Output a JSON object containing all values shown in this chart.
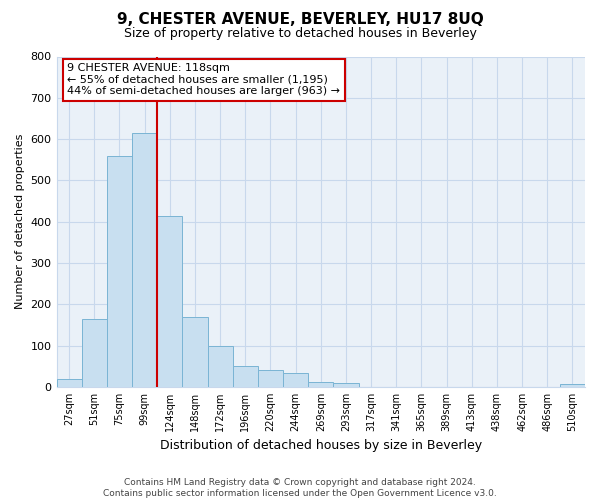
{
  "title": "9, CHESTER AVENUE, BEVERLEY, HU17 8UQ",
  "subtitle": "Size of property relative to detached houses in Beverley",
  "xlabel": "Distribution of detached houses by size in Beverley",
  "ylabel": "Number of detached properties",
  "bar_labels": [
    "27sqm",
    "51sqm",
    "75sqm",
    "99sqm",
    "124sqm",
    "148sqm",
    "172sqm",
    "196sqm",
    "220sqm",
    "244sqm",
    "269sqm",
    "293sqm",
    "317sqm",
    "341sqm",
    "365sqm",
    "389sqm",
    "413sqm",
    "438sqm",
    "462sqm",
    "486sqm",
    "510sqm"
  ],
  "bar_heights": [
    20,
    165,
    560,
    615,
    415,
    170,
    100,
    50,
    40,
    33,
    13,
    10,
    0,
    0,
    0,
    0,
    0,
    0,
    0,
    0,
    8
  ],
  "bar_color": "#c8dff0",
  "bar_edge_color": "#7ab4d4",
  "vline_color": "#cc0000",
  "annotation_title": "9 CHESTER AVENUE: 118sqm",
  "annotation_line1": "← 55% of detached houses are smaller (1,195)",
  "annotation_line2": "44% of semi-detached houses are larger (963) →",
  "annotation_box_color": "#ffffff",
  "annotation_box_edge": "#cc0000",
  "ylim": [
    0,
    800
  ],
  "yticks": [
    0,
    100,
    200,
    300,
    400,
    500,
    600,
    700,
    800
  ],
  "footer_line1": "Contains HM Land Registry data © Crown copyright and database right 2024.",
  "footer_line2": "Contains public sector information licensed under the Open Government Licence v3.0.",
  "bg_color": "#ffffff",
  "grid_color": "#c8d8ec",
  "vline_bar_index": 4
}
